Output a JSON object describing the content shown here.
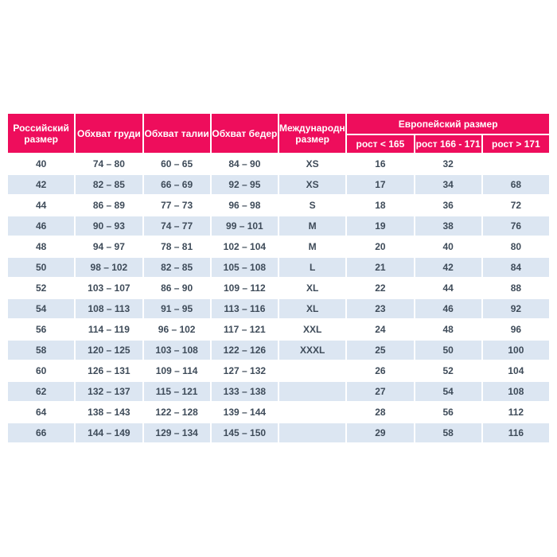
{
  "chart_data": {
    "type": "table",
    "header": {
      "russian_size": "Российский размер",
      "chest": "Обхват груди",
      "waist": "Обхват талии",
      "hips": "Обхват бедер",
      "international_size": "Международный размер",
      "european_size": "Европейский размер",
      "european_subcolumns": [
        "рост < 165",
        "рост 166 - 171",
        "рост > 171"
      ]
    },
    "rows": [
      [
        "40",
        "74 – 80",
        "60 – 65",
        "84 – 90",
        "XS",
        "16",
        "32",
        ""
      ],
      [
        "42",
        "82 – 85",
        "66 – 69",
        "92 – 95",
        "XS",
        "17",
        "34",
        "68"
      ],
      [
        "44",
        "86 – 89",
        "77 – 73",
        "96 – 98",
        "S",
        "18",
        "36",
        "72"
      ],
      [
        "46",
        "90 – 93",
        "74 – 77",
        "99 – 101",
        "M",
        "19",
        "38",
        "76"
      ],
      [
        "48",
        "94 – 97",
        "78 – 81",
        "102 – 104",
        "M",
        "20",
        "40",
        "80"
      ],
      [
        "50",
        "98 – 102",
        "82 – 85",
        "105 – 108",
        "L",
        "21",
        "42",
        "84"
      ],
      [
        "52",
        "103 – 107",
        "86 – 90",
        "109 – 112",
        "XL",
        "22",
        "44",
        "88"
      ],
      [
        "54",
        "108 – 113",
        "91 – 95",
        "113 – 116",
        "XL",
        "23",
        "46",
        "92"
      ],
      [
        "56",
        "114 – 119",
        "96 – 102",
        "117 – 121",
        "XXL",
        "24",
        "48",
        "96"
      ],
      [
        "58",
        "120 – 125",
        "103 – 108",
        "122 – 126",
        "XXXL",
        "25",
        "50",
        "100"
      ],
      [
        "60",
        "126 – 131",
        "109 – 114",
        "127 – 132",
        "",
        "26",
        "52",
        "104"
      ],
      [
        "62",
        "132 – 137",
        "115 – 121",
        "133 – 138",
        "",
        "27",
        "54",
        "108"
      ],
      [
        "64",
        "138 – 143",
        "122 – 128",
        "139 – 144",
        "",
        "28",
        "56",
        "112"
      ],
      [
        "66",
        "144 – 149",
        "129 – 134",
        "145 – 150",
        "",
        "29",
        "58",
        "116"
      ]
    ]
  },
  "colors": {
    "header_bg": "#ee0d5c",
    "header_text": "#ffffff",
    "row_bg": "#ffffff",
    "row_alt_bg": "#dce6f2",
    "cell_text": "#3e4b59"
  }
}
